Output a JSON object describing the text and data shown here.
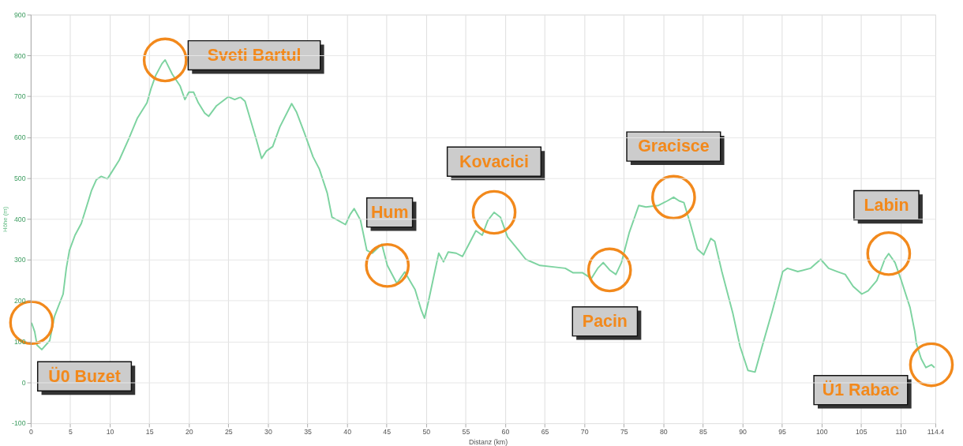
{
  "chart_data": {
    "type": "line",
    "xlabel": "Distanz (km)",
    "ylabel": "Höhe (m)",
    "xlim": [
      0,
      114.4
    ],
    "xticks": [
      0,
      5,
      10,
      15,
      20,
      25,
      30,
      35,
      40,
      45,
      50,
      55,
      60,
      65,
      70,
      75,
      80,
      85,
      90,
      95,
      100,
      105,
      110,
      114.4
    ],
    "ylim": [
      -100,
      900
    ],
    "yticks": [
      -100,
      0,
      100,
      200,
      300,
      400,
      500,
      600,
      700,
      800,
      900
    ],
    "grid": true,
    "marker": "none",
    "line_style": "solid",
    "series": [
      {
        "color": "#7dd3a0",
        "x": [
          0.1,
          0.5,
          0.8,
          1.4,
          2.4,
          3.0,
          4.1,
          4.5,
          4.9,
          5.6,
          6.4,
          7.0,
          7.7,
          8.3,
          8.9,
          9.7,
          10.0,
          11.2,
          12.4,
          13.5,
          14.7,
          15.2,
          15.8,
          16.6,
          17.0,
          17.9,
          18.9,
          19.5,
          20.0,
          20.6,
          21.2,
          22.0,
          22.5,
          23.5,
          25.0,
          25.8,
          26.5,
          27.1,
          28.5,
          29.2,
          29.8,
          30.6,
          31.5,
          33.0,
          33.6,
          34.6,
          35.7,
          36.5,
          37.5,
          38.1,
          38.8,
          39.8,
          40.4,
          40.9,
          41.7,
          42.5,
          43.2,
          44.4,
          45.1,
          46.3,
          47.3,
          48.6,
          49.4,
          49.8,
          50.3,
          51.1,
          51.6,
          52.2,
          52.8,
          53.8,
          54.6,
          55.3,
          56.3,
          57.1,
          57.8,
          58.6,
          59.4,
          60.3,
          61.7,
          62.6,
          64.4,
          66.3,
          67.6,
          68.6,
          69.8,
          70.9,
          71.7,
          72.4,
          73.2,
          74.0,
          74.7,
          75.7,
          76.9,
          77.8,
          79.4,
          80.5,
          81.3,
          82.0,
          82.6,
          83.4,
          84.3,
          85.1,
          86.0,
          86.5,
          87.4,
          88.8,
          89.7,
          90.7,
          91.6,
          92.6,
          93.8,
          95.1,
          95.7,
          97.0,
          98.6,
          99.9,
          100.9,
          102.0,
          103.0,
          104.0,
          105.1,
          105.9,
          107.0,
          108.0,
          108.5,
          109.3,
          110.1,
          111.2,
          111.8,
          112.0,
          112.6,
          113.2,
          113.9,
          114.3
        ],
        "values": [
          146,
          124,
          91,
          80,
          102,
          161,
          216,
          279,
          323,
          360,
          389,
          426,
          470,
          496,
          504,
          498,
          507,
          544,
          596,
          647,
          684,
          718,
          751,
          780,
          789,
          754,
          725,
          692,
          710,
          710,
          684,
          659,
          651,
          677,
          699,
          692,
          698,
          688,
          596,
          548,
          566,
          577,
          625,
          682,
          662,
          611,
          552,
          522,
          463,
          404,
          397,
          386,
          411,
          425,
          397,
          323,
          316,
          338,
          286,
          242,
          270,
          227,
          176,
          157,
          198,
          271,
          316,
          295,
          319,
          316,
          308,
          334,
          371,
          360,
          396,
          416,
          404,
          356,
          323,
          301,
          286,
          282,
          279,
          268,
          268,
          254,
          279,
          293,
          275,
          264,
          293,
          367,
          433,
          429,
          433,
          444,
          453,
          444,
          440,
          389,
          326,
          312,
          352,
          345,
          271,
          168,
          88,
          29,
          25,
          95,
          176,
          271,
          279,
          271,
          279,
          301,
          279,
          271,
          264,
          235,
          216,
          224,
          249,
          301,
          315,
          293,
          249,
          183,
          124,
          95,
          58,
          36,
          43,
          36
        ]
      }
    ],
    "annotations": [
      {
        "text": "Ü0 Buzet",
        "x": 0.1,
        "y": 146
      },
      {
        "text": "Sveti Bartul",
        "x": 17.0,
        "y": 789
      },
      {
        "text": "Hum",
        "x": 45.1,
        "y": 286
      },
      {
        "text": "Kovacici",
        "x": 58.6,
        "y": 416
      },
      {
        "text": "Pacin",
        "x": 73.2,
        "y": 275
      },
      {
        "text": "Gracisce",
        "x": 81.3,
        "y": 453
      },
      {
        "text": "Labin",
        "x": 108.5,
        "y": 315
      },
      {
        "text": "Ü1 Rabac",
        "x": 113.9,
        "y": 43
      }
    ]
  }
}
